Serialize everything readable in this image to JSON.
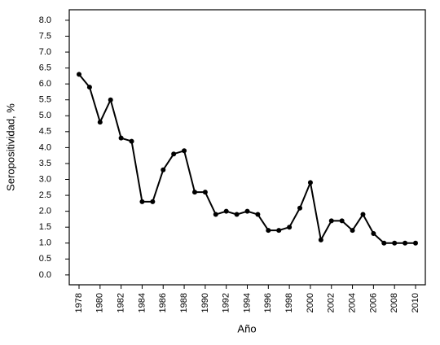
{
  "chart_data": {
    "type": "line",
    "x": [
      1978,
      1979,
      1980,
      1981,
      1982,
      1983,
      1984,
      1985,
      1986,
      1987,
      1988,
      1989,
      1990,
      1991,
      1992,
      1993,
      1994,
      1995,
      1996,
      1997,
      1998,
      1999,
      2000,
      2001,
      2002,
      2003,
      2004,
      2005,
      2006,
      2007,
      2008,
      2009,
      2010
    ],
    "values": [
      6.3,
      5.9,
      4.8,
      5.5,
      4.3,
      4.2,
      2.3,
      2.3,
      3.3,
      3.8,
      3.9,
      2.6,
      2.6,
      1.9,
      2.0,
      1.9,
      2.0,
      1.9,
      1.4,
      1.4,
      1.5,
      2.1,
      2.9,
      1.1,
      1.7,
      1.7,
      1.4,
      1.9,
      1.3,
      1.0,
      1.0,
      1.0,
      1.0
    ],
    "color": "#000000",
    "x_label": "Año",
    "y_label": "Seropositividad, %",
    "xlim": [
      1977.07,
      2010.93
    ],
    "xticks": [
      1978,
      1980,
      1982,
      1984,
      1986,
      1988,
      1990,
      1992,
      1994,
      1996,
      1998,
      2000,
      2002,
      2004,
      2006,
      2008,
      2010
    ],
    "ylim": [
      -0.31,
      8.33
    ],
    "yticks": [
      {
        "value": 0,
        "label": "0.0"
      },
      0.5,
      {
        "value": 1,
        "label": "1.0"
      },
      1.5,
      {
        "value": 2,
        "label": "2.0"
      },
      2.5,
      {
        "value": 3,
        "label": "3.0"
      },
      3.5,
      {
        "value": 4,
        "label": "4.0"
      },
      4.5,
      {
        "value": 5,
        "label": "5.0"
      },
      5.5,
      {
        "value": 6,
        "label": "6.0"
      },
      6.5,
      {
        "value": 7,
        "label": "7.0"
      },
      7.5,
      {
        "value": 8,
        "label": "8.0"
      }
    ]
  }
}
